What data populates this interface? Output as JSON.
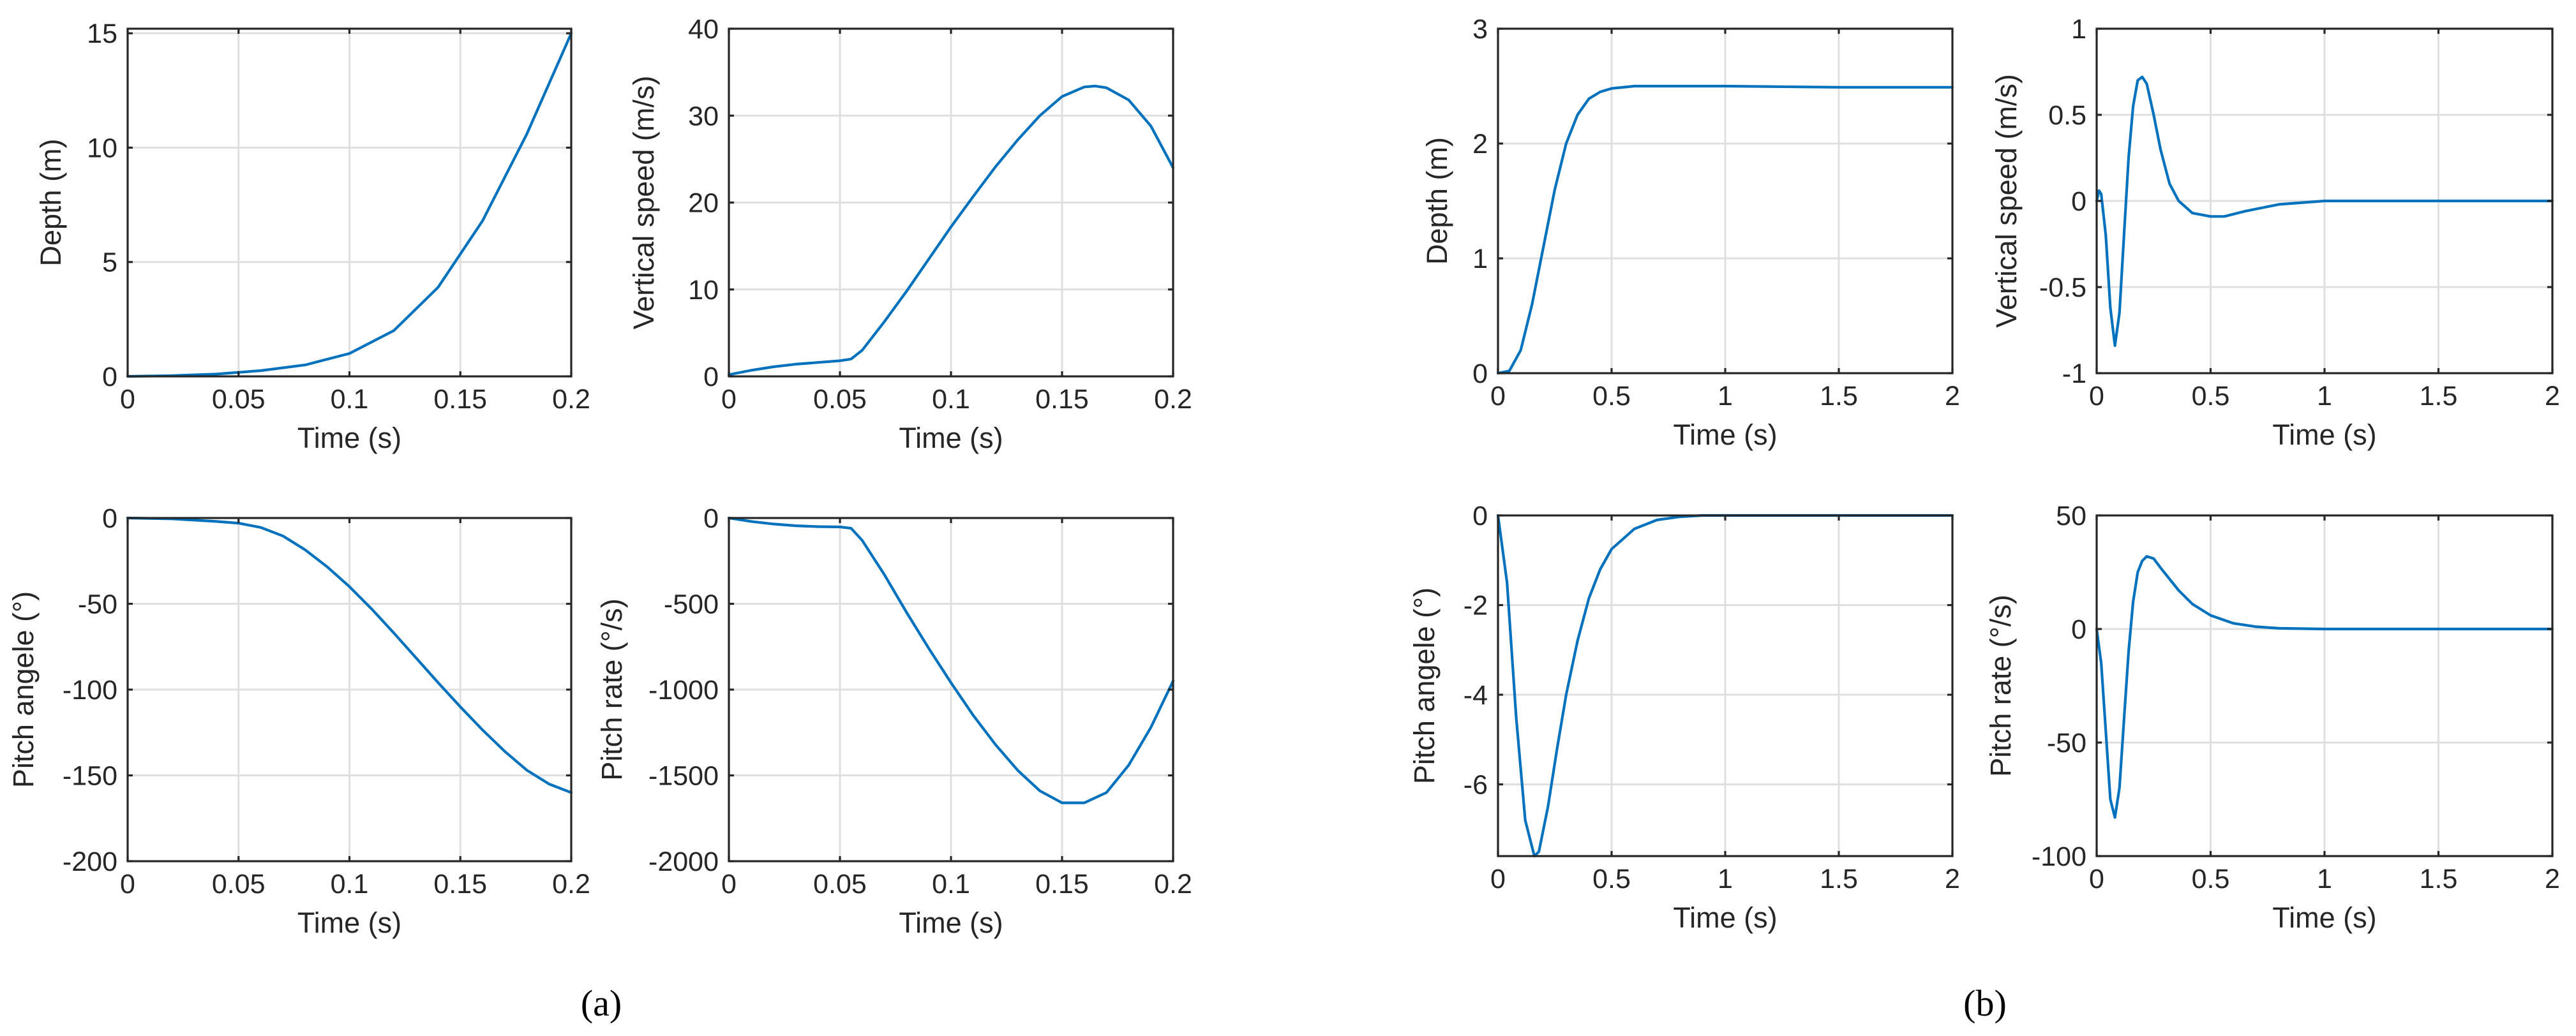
{
  "colors": {
    "line": "#0072bd",
    "grid": "#dfdfdf",
    "axis": "#262626"
  },
  "figure": {
    "panel_labels": [
      "(a)",
      "(b)"
    ]
  },
  "chart_data": [
    {
      "id": "a-depth",
      "group": "(a)",
      "type": "line",
      "xlabel": "Time (s)",
      "ylabel": "Depth (m)",
      "xlim": [
        0,
        0.2
      ],
      "ylim": [
        0,
        15.2
      ],
      "xticks": [
        0,
        0.05,
        0.1,
        0.15,
        0.2
      ],
      "xtick_labels": [
        "0",
        "0.05",
        "0.1",
        "0.15",
        "0.2"
      ],
      "yticks": [
        0,
        5,
        10,
        15
      ],
      "ytick_labels": [
        "0",
        "5",
        "10",
        "15"
      ],
      "grid": true,
      "series": [
        {
          "name": "Depth",
          "x": [
            0,
            0.02,
            0.04,
            0.06,
            0.08,
            0.1,
            0.12,
            0.14,
            0.16,
            0.18,
            0.2
          ],
          "y": [
            0,
            0.03,
            0.1,
            0.25,
            0.5,
            1.0,
            2.0,
            3.9,
            6.8,
            10.6,
            15.0
          ]
        }
      ]
    },
    {
      "id": "a-vspeed",
      "group": "(a)",
      "type": "line",
      "xlabel": "Time (s)",
      "ylabel": "Vertical speed (m/s)",
      "xlim": [
        0,
        0.2
      ],
      "ylim": [
        0,
        40
      ],
      "xticks": [
        0,
        0.05,
        0.1,
        0.15,
        0.2
      ],
      "xtick_labels": [
        "0",
        "0.05",
        "0.1",
        "0.15",
        "0.2"
      ],
      "yticks": [
        0,
        10,
        20,
        30,
        40
      ],
      "ytick_labels": [
        "0",
        "10",
        "20",
        "30",
        "40"
      ],
      "grid": true,
      "series": [
        {
          "name": "Vertical speed",
          "x": [
            0,
            0.01,
            0.02,
            0.03,
            0.04,
            0.05,
            0.055,
            0.06,
            0.07,
            0.08,
            0.09,
            0.1,
            0.11,
            0.12,
            0.13,
            0.14,
            0.15,
            0.16,
            0.165,
            0.17,
            0.18,
            0.19,
            0.2
          ],
          "y": [
            0.2,
            0.7,
            1.1,
            1.4,
            1.6,
            1.8,
            2.0,
            3.0,
            6.3,
            9.8,
            13.5,
            17.2,
            20.7,
            24.1,
            27.2,
            30.0,
            32.2,
            33.3,
            33.4,
            33.2,
            31.8,
            28.8,
            24.0
          ]
        }
      ]
    },
    {
      "id": "a-pitch",
      "group": "(a)",
      "type": "line",
      "xlabel": "Time (s)",
      "ylabel": "Pitch angele (°)",
      "xlim": [
        0,
        0.2
      ],
      "ylim": [
        -200,
        0
      ],
      "xticks": [
        0,
        0.05,
        0.1,
        0.15,
        0.2
      ],
      "xtick_labels": [
        "0",
        "0.05",
        "0.1",
        "0.15",
        "0.2"
      ],
      "yticks": [
        -200,
        -150,
        -100,
        -50,
        0
      ],
      "ytick_labels": [
        "-200",
        "-150",
        "-100",
        "-50",
        "0"
      ],
      "grid": true,
      "series": [
        {
          "name": "Pitch angle",
          "x": [
            0,
            0.02,
            0.04,
            0.05,
            0.06,
            0.07,
            0.08,
            0.09,
            0.1,
            0.11,
            0.12,
            0.13,
            0.14,
            0.15,
            0.16,
            0.17,
            0.18,
            0.19,
            0.2
          ],
          "y": [
            0,
            -0.5,
            -2.0,
            -3.0,
            -5.5,
            -10.5,
            -18.5,
            -28.5,
            -40.0,
            -53.0,
            -67.0,
            -81.5,
            -96.0,
            -110.0,
            -123.5,
            -136.0,
            -147.0,
            -155.0,
            -160.0
          ]
        }
      ]
    },
    {
      "id": "a-pitchrate",
      "group": "(a)",
      "type": "line",
      "xlabel": "Time (s)",
      "ylabel": "Pitch rate (°/s)",
      "xlim": [
        0,
        0.2
      ],
      "ylim": [
        -2000,
        0
      ],
      "xticks": [
        0,
        0.05,
        0.1,
        0.15,
        0.2
      ],
      "xtick_labels": [
        "0",
        "0.05",
        "0.1",
        "0.15",
        "0.2"
      ],
      "yticks": [
        -2000,
        -1500,
        -1000,
        -500,
        0
      ],
      "ytick_labels": [
        "-2000",
        "-1500",
        "-1000",
        "-500",
        "0"
      ],
      "grid": true,
      "series": [
        {
          "name": "Pitch rate",
          "x": [
            0,
            0.01,
            0.02,
            0.03,
            0.04,
            0.05,
            0.055,
            0.06,
            0.07,
            0.08,
            0.09,
            0.1,
            0.11,
            0.12,
            0.13,
            0.14,
            0.15,
            0.16,
            0.17,
            0.18,
            0.19,
            0.2
          ],
          "y": [
            0,
            -20,
            -35,
            -45,
            -50,
            -52,
            -60,
            -130,
            -330,
            -550,
            -760,
            -960,
            -1150,
            -1320,
            -1470,
            -1590,
            -1660,
            -1660,
            -1600,
            -1440,
            -1220,
            -950
          ]
        }
      ]
    },
    {
      "id": "b-depth",
      "group": "(b)",
      "type": "line",
      "xlabel": "Time (s)",
      "ylabel": "Depth (m)",
      "xlim": [
        0,
        2
      ],
      "ylim": [
        0,
        3
      ],
      "xticks": [
        0,
        0.5,
        1,
        1.5,
        2
      ],
      "xtick_labels": [
        "0",
        "0.5",
        "1",
        "1.5",
        "2"
      ],
      "yticks": [
        0,
        1,
        2,
        3
      ],
      "ytick_labels": [
        "0",
        "1",
        "2",
        "3"
      ],
      "grid": true,
      "series": [
        {
          "name": "Depth",
          "x": [
            0,
            0.05,
            0.1,
            0.15,
            0.2,
            0.25,
            0.3,
            0.35,
            0.4,
            0.45,
            0.5,
            0.6,
            0.7,
            0.8,
            1.0,
            1.5,
            2.0
          ],
          "y": [
            0,
            0.02,
            0.2,
            0.6,
            1.1,
            1.6,
            2.0,
            2.25,
            2.39,
            2.45,
            2.48,
            2.5,
            2.5,
            2.5,
            2.5,
            2.49,
            2.49
          ]
        }
      ]
    },
    {
      "id": "b-vspeed",
      "group": "(b)",
      "type": "line",
      "xlabel": "Time (s)",
      "ylabel": "Vertical speed (m/s)",
      "xlim": [
        0,
        2
      ],
      "ylim": [
        -1,
        1
      ],
      "xticks": [
        0,
        0.5,
        1,
        1.5,
        2
      ],
      "xtick_labels": [
        "0",
        "0.5",
        "1",
        "1.5",
        "2"
      ],
      "yticks": [
        -1,
        -0.5,
        0,
        0.5,
        1
      ],
      "ytick_labels": [
        "-1",
        "-0.5",
        "0",
        "0.5",
        "1"
      ],
      "grid": true,
      "series": [
        {
          "name": "Vertical speed",
          "x": [
            0,
            0.01,
            0.02,
            0.04,
            0.06,
            0.08,
            0.1,
            0.12,
            0.14,
            0.16,
            0.18,
            0.2,
            0.22,
            0.25,
            0.28,
            0.32,
            0.36,
            0.42,
            0.5,
            0.56,
            0.65,
            0.8,
            1.0,
            1.5,
            2.0
          ],
          "y": [
            0,
            0.06,
            0.04,
            -0.2,
            -0.62,
            -0.84,
            -0.65,
            -0.2,
            0.25,
            0.55,
            0.7,
            0.72,
            0.68,
            0.5,
            0.3,
            0.1,
            0.0,
            -0.07,
            -0.09,
            -0.09,
            -0.06,
            -0.02,
            0.0,
            0.0,
            0.0
          ]
        }
      ]
    },
    {
      "id": "b-pitch",
      "group": "(b)",
      "type": "line",
      "xlabel": "Time (s)",
      "ylabel": "Pitch angele (°)",
      "xlim": [
        0,
        2
      ],
      "ylim": [
        -7.6,
        0
      ],
      "xticks": [
        0,
        0.5,
        1,
        1.5,
        2
      ],
      "xtick_labels": [
        "0",
        "0.5",
        "1",
        "1.5",
        "2"
      ],
      "yticks": [
        -6,
        -4,
        -2,
        0
      ],
      "ytick_labels": [
        "-6",
        "-4",
        "-2",
        "0"
      ],
      "grid": true,
      "series": [
        {
          "name": "Pitch angle",
          "x": [
            0,
            0.04,
            0.08,
            0.12,
            0.16,
            0.18,
            0.22,
            0.26,
            0.3,
            0.35,
            0.4,
            0.45,
            0.5,
            0.6,
            0.7,
            0.8,
            0.9,
            1.0,
            1.5,
            2.0
          ],
          "y": [
            0,
            -1.5,
            -4.5,
            -6.8,
            -7.6,
            -7.5,
            -6.5,
            -5.2,
            -4.0,
            -2.8,
            -1.85,
            -1.2,
            -0.75,
            -0.3,
            -0.1,
            -0.03,
            0,
            0,
            0,
            0
          ]
        }
      ]
    },
    {
      "id": "b-pitchrate",
      "group": "(b)",
      "type": "line",
      "xlabel": "Time (s)",
      "ylabel": "Pitch rate (°/s)",
      "xlim": [
        0,
        2
      ],
      "ylim": [
        -100,
        50
      ],
      "xticks": [
        0,
        0.5,
        1,
        1.5,
        2
      ],
      "xtick_labels": [
        "0",
        "0.5",
        "1",
        "1.5",
        "2"
      ],
      "yticks": [
        -100,
        -50,
        0,
        50
      ],
      "ytick_labels": [
        "-100",
        "-50",
        "0",
        "50"
      ],
      "grid": true,
      "series": [
        {
          "name": "Pitch rate",
          "x": [
            0,
            0.02,
            0.04,
            0.06,
            0.08,
            0.1,
            0.12,
            0.14,
            0.16,
            0.18,
            0.2,
            0.22,
            0.25,
            0.28,
            0.32,
            0.36,
            0.42,
            0.5,
            0.6,
            0.7,
            0.8,
            1.0,
            1.5,
            2.0
          ],
          "y": [
            0,
            -15,
            -45,
            -75,
            -83,
            -70,
            -40,
            -10,
            12,
            25,
            30,
            32,
            31,
            27,
            22,
            17,
            11,
            6,
            2.5,
            1,
            0.3,
            0,
            0,
            0
          ]
        }
      ]
    }
  ]
}
